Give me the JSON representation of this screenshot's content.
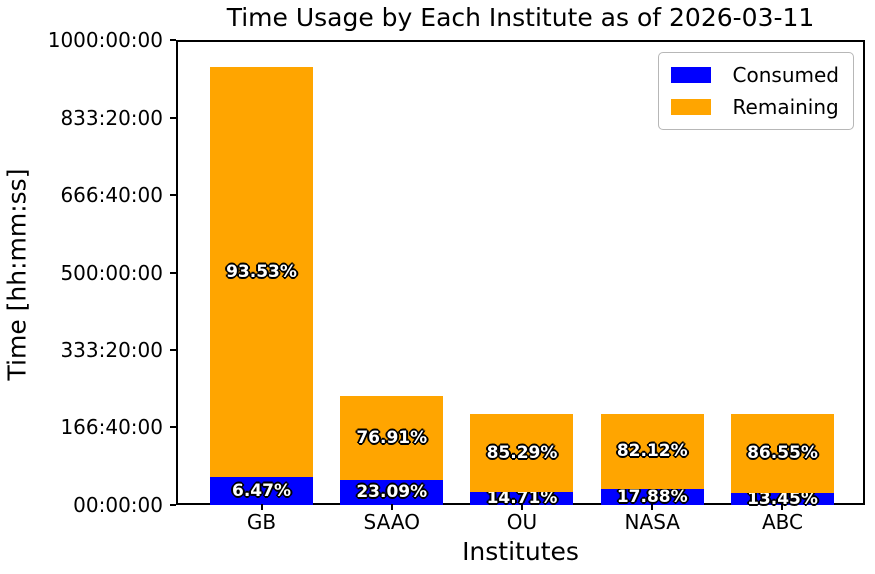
{
  "chart_data": {
    "type": "bar",
    "stacked": true,
    "title": "Time Usage by Each Institute as of 2026-03-11",
    "xlabel": "Institutes",
    "ylabel": "Time [hh:mm:ss]",
    "categories": [
      "GB",
      "SAAO",
      "OU",
      "NASA",
      "ABC"
    ],
    "series": [
      {
        "name": "Consumed",
        "color": "#0000ff",
        "values_hours": [
          60.9,
          54.3,
          28.8,
          35.0,
          26.4
        ],
        "percent_labels": [
          "6.47%",
          "23.09%",
          "14.71%",
          "17.88%",
          "13.45%"
        ]
      },
      {
        "name": "Remaining",
        "color": "#ffa500",
        "values_hours": [
          881.1,
          180.7,
          167.2,
          161.0,
          169.6
        ],
        "percent_labels": [
          "93.53%",
          "76.91%",
          "85.29%",
          "82.12%",
          "86.55%"
        ]
      }
    ],
    "totals_hours": [
      942,
      235,
      196,
      196,
      196
    ],
    "ylim": [
      0,
      1000
    ],
    "yticks": {
      "values": [
        0,
        166.6667,
        333.3333,
        500,
        666.6667,
        833.3333,
        1000
      ],
      "labels": [
        "00:00:00",
        "166:40:00",
        "333:20:00",
        "500:00:00",
        "666:40:00",
        "833:20:00",
        "1000:00:00"
      ]
    },
    "xticks": [
      "GB",
      "SAAO",
      "OU",
      "NASA",
      "ABC"
    ],
    "legend": {
      "position": "upper right",
      "entries": [
        {
          "label": "Consumed",
          "color": "#0000ff"
        },
        {
          "label": "Remaining",
          "color": "#ffa500"
        }
      ]
    },
    "grid": false,
    "bar_label_style": {
      "fill": "#ffffff",
      "outline": "#000000"
    },
    "background": "#ffffff"
  }
}
